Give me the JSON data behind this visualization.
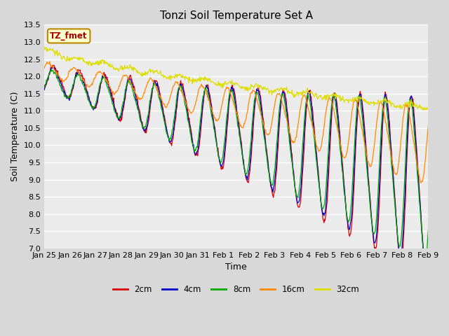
{
  "title": "Tonzi Soil Temperature Set A",
  "xlabel": "Time",
  "ylabel": "Soil Temperature (C)",
  "ylim": [
    7.0,
    13.5
  ],
  "annotation_text": "TZ_fmet",
  "annotation_bg": "#ffffcc",
  "annotation_border": "#bb8800",
  "annotation_text_color": "#aa0000",
  "plot_bg_color": "#ebebeb",
  "grid_color": "#ffffff",
  "legend_labels": [
    "2cm",
    "4cm",
    "8cm",
    "16cm",
    "32cm"
  ],
  "line_colors": [
    "#dd0000",
    "#0000cc",
    "#00aa00",
    "#ff8800",
    "#dddd00"
  ],
  "xtick_labels": [
    "Jan 25",
    "Jan 26",
    "Jan 27",
    "Jan 28",
    "Jan 29",
    "Jan 30",
    "Jan 31",
    "Feb 1",
    "Feb 2",
    "Feb 3",
    "Feb 4",
    "Feb 5",
    "Feb 6",
    "Feb 7",
    "Feb 8",
    "Feb 9"
  ],
  "ytick_labels": [
    "7.0",
    "7.5",
    "8.0",
    "8.5",
    "9.0",
    "9.5",
    "10.0",
    "10.5",
    "11.0",
    "11.5",
    "12.0",
    "12.5",
    "13.0",
    "13.5"
  ]
}
